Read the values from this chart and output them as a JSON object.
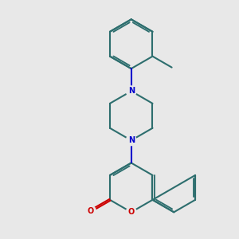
{
  "background_color": "#e8e8e8",
  "bond_color": "#2d6e6e",
  "nitrogen_color": "#0000cc",
  "oxygen_color": "#cc0000",
  "line_width": 1.5,
  "figsize": [
    3.0,
    3.0
  ],
  "dpi": 100,
  "xlim": [
    0,
    10
  ],
  "ylim": [
    0,
    10
  ]
}
